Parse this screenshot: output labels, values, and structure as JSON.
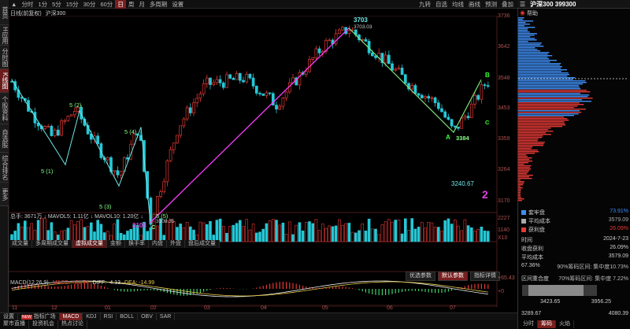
{
  "left_tabs": [
    {
      "label": "首页",
      "active": false
    },
    {
      "label": "H应用",
      "active": false
    },
    {
      "label": "分时图",
      "active": false
    },
    {
      "label": "K线图",
      "active": true
    },
    {
      "label": "个股资料",
      "active": false
    },
    {
      "label": "自选股",
      "active": false
    },
    {
      "label": "综合排名",
      "active": false
    },
    {
      "label": "更多",
      "active": false
    }
  ],
  "toolbar": {
    "items": [
      "分时",
      "1分",
      "5分",
      "15分",
      "30分",
      "60分",
      "日",
      "周",
      "月",
      "多周期",
      "设置"
    ],
    "active": "日",
    "right_items": [
      "九转",
      "自选",
      "均线",
      "画线",
      "预测",
      "叠加"
    ]
  },
  "chart_header": {
    "mode": "日线(前复权)",
    "name": "沪深300"
  },
  "y_ticks": [
    "3736",
    "3642",
    "3548",
    "3453",
    "3359",
    "3264",
    "3170"
  ],
  "annotations": {
    "high_label": "3703",
    "high_value": "3703.03",
    "low_label": "3108",
    "low_value": "3108.35",
    "wave_5_1": "5 (1)",
    "wave_5_2": "5 (2)",
    "wave_5_3": "5 (3)",
    "wave_5_4": "5 (4)",
    "wave_5_5": "5 (5)",
    "wave_c": "C",
    "A": "A",
    "A_value": "3384",
    "B": "B",
    "C2": "C",
    "mid_value": "3240.67",
    "big_2": "2"
  },
  "volume": {
    "header": "总手: 3671万 ↓ MAVOL5: 1.11亿 ↓ MAVOL10: 1.20亿 ↓",
    "ticks": [
      "2227",
      "1140",
      "X10"
    ]
  },
  "indicator_tabs": [
    "成交量",
    "多周期成交量",
    "虚拟成交量",
    "金额",
    "换手率",
    "内盘",
    "外盘",
    "盘后成交量"
  ],
  "indicator_tabs_active": "虚拟成交量",
  "param_buttons": [
    "优选参数",
    "默认参数",
    "指标详情"
  ],
  "param_active": "默认参数",
  "macd": {
    "name": "MACD(12,26,9)",
    "macd_label": "MACD: +21.74",
    "diff_label": "DIFF: -4.13",
    "dea_label": "DEA: -14.99",
    "ticks": [
      "+65.43",
      "+0"
    ]
  },
  "x_ticks": [
    "11",
    "12",
    "01",
    "02",
    "03",
    "04",
    "05",
    "06",
    "07"
  ],
  "bottom_tabs": [
    "设置",
    "指标广场",
    "MACD",
    "KDJ",
    "RSI",
    "BOLL",
    "OBV",
    "SAR"
  ],
  "bottom_active": "MACD",
  "bottom_tabs2": [
    "聚市直播",
    "投资机会",
    "热点讨论"
  ],
  "right_panel": {
    "title": "沪深300 399300",
    "help": "帮助",
    "legend": [
      {
        "label": "套牢盘",
        "value": "73.91%",
        "color": "#3f8ef5"
      },
      {
        "label": "平均成本",
        "value": "3579.09",
        "color": "#aaaaaa"
      },
      {
        "label": "获利盘",
        "value": "26.09%",
        "color": "#e53935"
      }
    ],
    "info": [
      {
        "label": "时间",
        "value": "2024-7-23"
      },
      {
        "label": "收盘获利",
        "value": "26.09%"
      },
      {
        "label": "平均成本",
        "value": "3579.09"
      }
    ],
    "concentration_pct": "67.36%",
    "conc90": "90%筹码区间: 集中度10.73%",
    "range_label": "区间重合度",
    "conc70": "70%筹码区间: 集中度 7.22%",
    "range_a": "3423.65",
    "range_b": "3956.25",
    "range_c": "3289.67",
    "range_d": "4080.39",
    "tabs": [
      "分时",
      "筹码",
      "火焰"
    ],
    "tab_active": "筹码"
  },
  "colors": {
    "up": "#e53935",
    "down": "#25c8d6",
    "accent": "#7a1f1f",
    "wave_line": "#ff3cff",
    "wave_line2": "#6ee7e7"
  }
}
